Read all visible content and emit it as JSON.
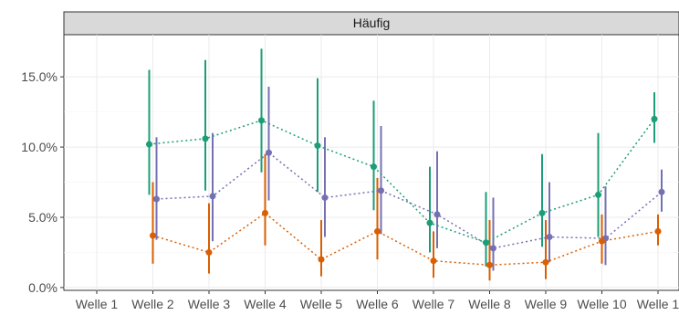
{
  "chart_data": {
    "type": "scatter",
    "facet": "Häufig",
    "categories": [
      "Welle 1",
      "Welle 2",
      "Welle 3",
      "Welle 4",
      "Welle 5",
      "Welle 6",
      "Welle 7",
      "Welle 8",
      "Welle 9",
      "Welle 10",
      "Welle 1"
    ],
    "y_ticks": [
      "0.0%",
      "5.0%",
      "10.0%",
      "15.0%"
    ],
    "y_tick_values": [
      0,
      5,
      10,
      15
    ],
    "ylim": [
      -0.2,
      18.0
    ],
    "grid": true,
    "legend": "none",
    "series": [
      {
        "color": "#1b9e77",
        "values": [
          null,
          10.2,
          10.6,
          11.9,
          10.1,
          8.6,
          4.6,
          3.2,
          5.3,
          6.6,
          12.0
        ],
        "lower": [
          null,
          6.6,
          6.9,
          8.2,
          6.8,
          5.5,
          2.5,
          1.5,
          2.9,
          3.6,
          10.3
        ],
        "upper": [
          null,
          15.5,
          16.2,
          17.0,
          14.9,
          13.3,
          8.6,
          6.8,
          9.5,
          11.0,
          13.9
        ]
      },
      {
        "color": "#7570b3",
        "values": [
          null,
          6.3,
          6.5,
          9.6,
          6.4,
          6.9,
          5.2,
          2.8,
          3.6,
          3.5,
          6.8
        ],
        "lower": [
          null,
          3.4,
          3.3,
          6.2,
          3.6,
          3.8,
          2.8,
          1.2,
          1.8,
          1.6,
          5.4
        ],
        "upper": [
          null,
          10.7,
          11.0,
          14.3,
          10.7,
          11.5,
          9.7,
          6.4,
          7.5,
          7.2,
          8.4
        ]
      },
      {
        "color": "#d95f02",
        "values": [
          null,
          3.7,
          2.5,
          5.3,
          2.0,
          4.0,
          1.9,
          1.6,
          1.8,
          3.3,
          4.0
        ],
        "lower": [
          null,
          1.7,
          1.0,
          3.0,
          0.8,
          2.0,
          0.7,
          0.5,
          0.6,
          1.7,
          3.0
        ],
        "upper": [
          null,
          7.5,
          6.0,
          9.5,
          4.8,
          7.8,
          4.0,
          4.8,
          4.8,
          5.2,
          5.2
        ]
      }
    ]
  }
}
